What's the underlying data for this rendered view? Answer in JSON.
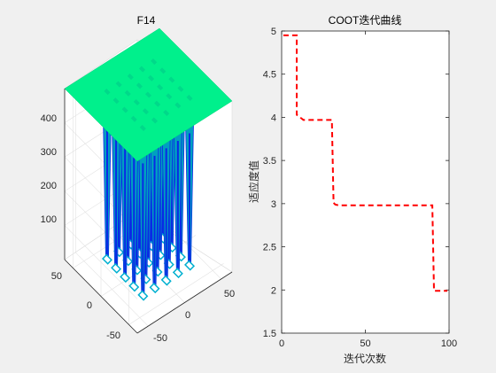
{
  "figure": {
    "background": "#f0f0f0"
  },
  "chart_data": [
    {
      "type": "surface3d",
      "title": "F14",
      "z_ticks": [
        "100",
        "200",
        "300",
        "400"
      ],
      "x_ticks": [
        "-50",
        "0",
        "50"
      ],
      "y_ticks": [
        "-50",
        "0",
        "50"
      ],
      "xlim": [
        -65,
        65
      ],
      "ylim": [
        -65,
        65
      ],
      "zlim": [
        0,
        500
      ],
      "plateau_value": 500,
      "grid": true,
      "colormap": "winter",
      "colors": {
        "top": "#00f08c",
        "mid": "#00a0c0",
        "base": "#0a28e6"
      }
    },
    {
      "type": "line",
      "title": "COOT迭代曲线",
      "xlabel": "迭代次数",
      "ylabel": "适应度值",
      "xlim": [
        0,
        100
      ],
      "ylim": [
        1.5,
        5
      ],
      "x_ticks": [
        "0",
        "50",
        "100"
      ],
      "y_ticks": [
        "1.5",
        "2",
        "2.5",
        "3",
        "3.5",
        "4",
        "4.5",
        "5"
      ],
      "series": [
        {
          "color": "#ff0000",
          "line_style": "dashed",
          "x": [
            1,
            9,
            9,
            13,
            30,
            31,
            32,
            34,
            90,
            91,
            99
          ],
          "y": [
            4.95,
            4.95,
            4.03,
            3.97,
            3.97,
            3.01,
            2.99,
            2.98,
            2.98,
            1.99,
            1.99
          ]
        }
      ]
    }
  ]
}
